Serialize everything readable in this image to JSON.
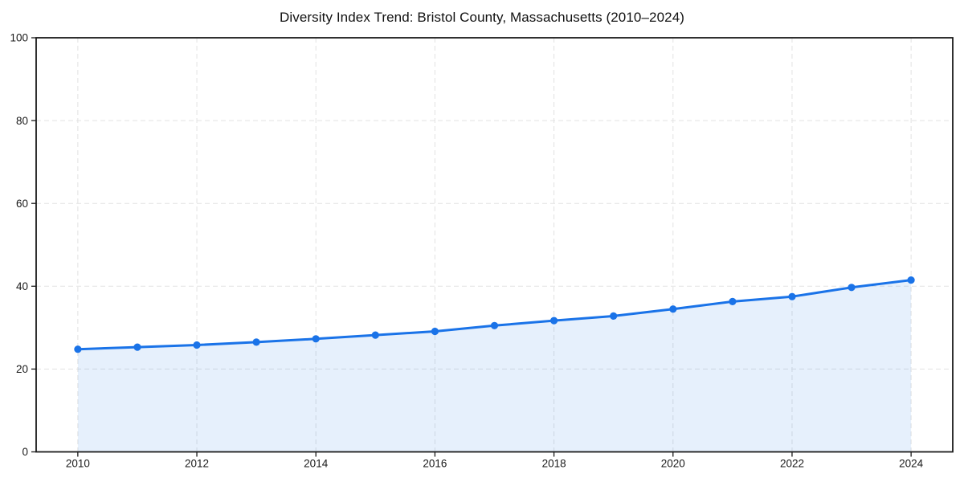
{
  "figure": {
    "background": "#ffffff"
  },
  "chart_data": {
    "type": "line",
    "title": "Diversity Index Trend: Bristol County, Massachusetts (2010–2024)",
    "series_name": "Diversity Index",
    "x": [
      2010,
      2011,
      2012,
      2013,
      2014,
      2015,
      2016,
      2017,
      2018,
      2019,
      2020,
      2021,
      2022,
      2023,
      2024
    ],
    "values": [
      24.8,
      25.3,
      25.8,
      26.5,
      27.3,
      28.2,
      29.1,
      30.5,
      31.7,
      32.8,
      34.5,
      36.3,
      37.5,
      39.7,
      41.5
    ],
    "xticks": [
      2010,
      2012,
      2014,
      2016,
      2018,
      2020,
      2022,
      2024
    ],
    "yticks": [
      0,
      20,
      40,
      60,
      80,
      100
    ],
    "xlim": [
      2009.3,
      2024.7
    ],
    "ylim": [
      0,
      100
    ],
    "grid": "dashed",
    "legend_position": "none",
    "area_fill": true,
    "marker": "circle",
    "colors": {
      "line": "#1a73e8",
      "marker": "#1a73e8",
      "area": "rgba(26,115,232,0.11)",
      "grid": "#e2e2e2",
      "frame": "#1a1a1a",
      "tick_text": "#1a1a1a",
      "title_text": "#111111"
    }
  }
}
